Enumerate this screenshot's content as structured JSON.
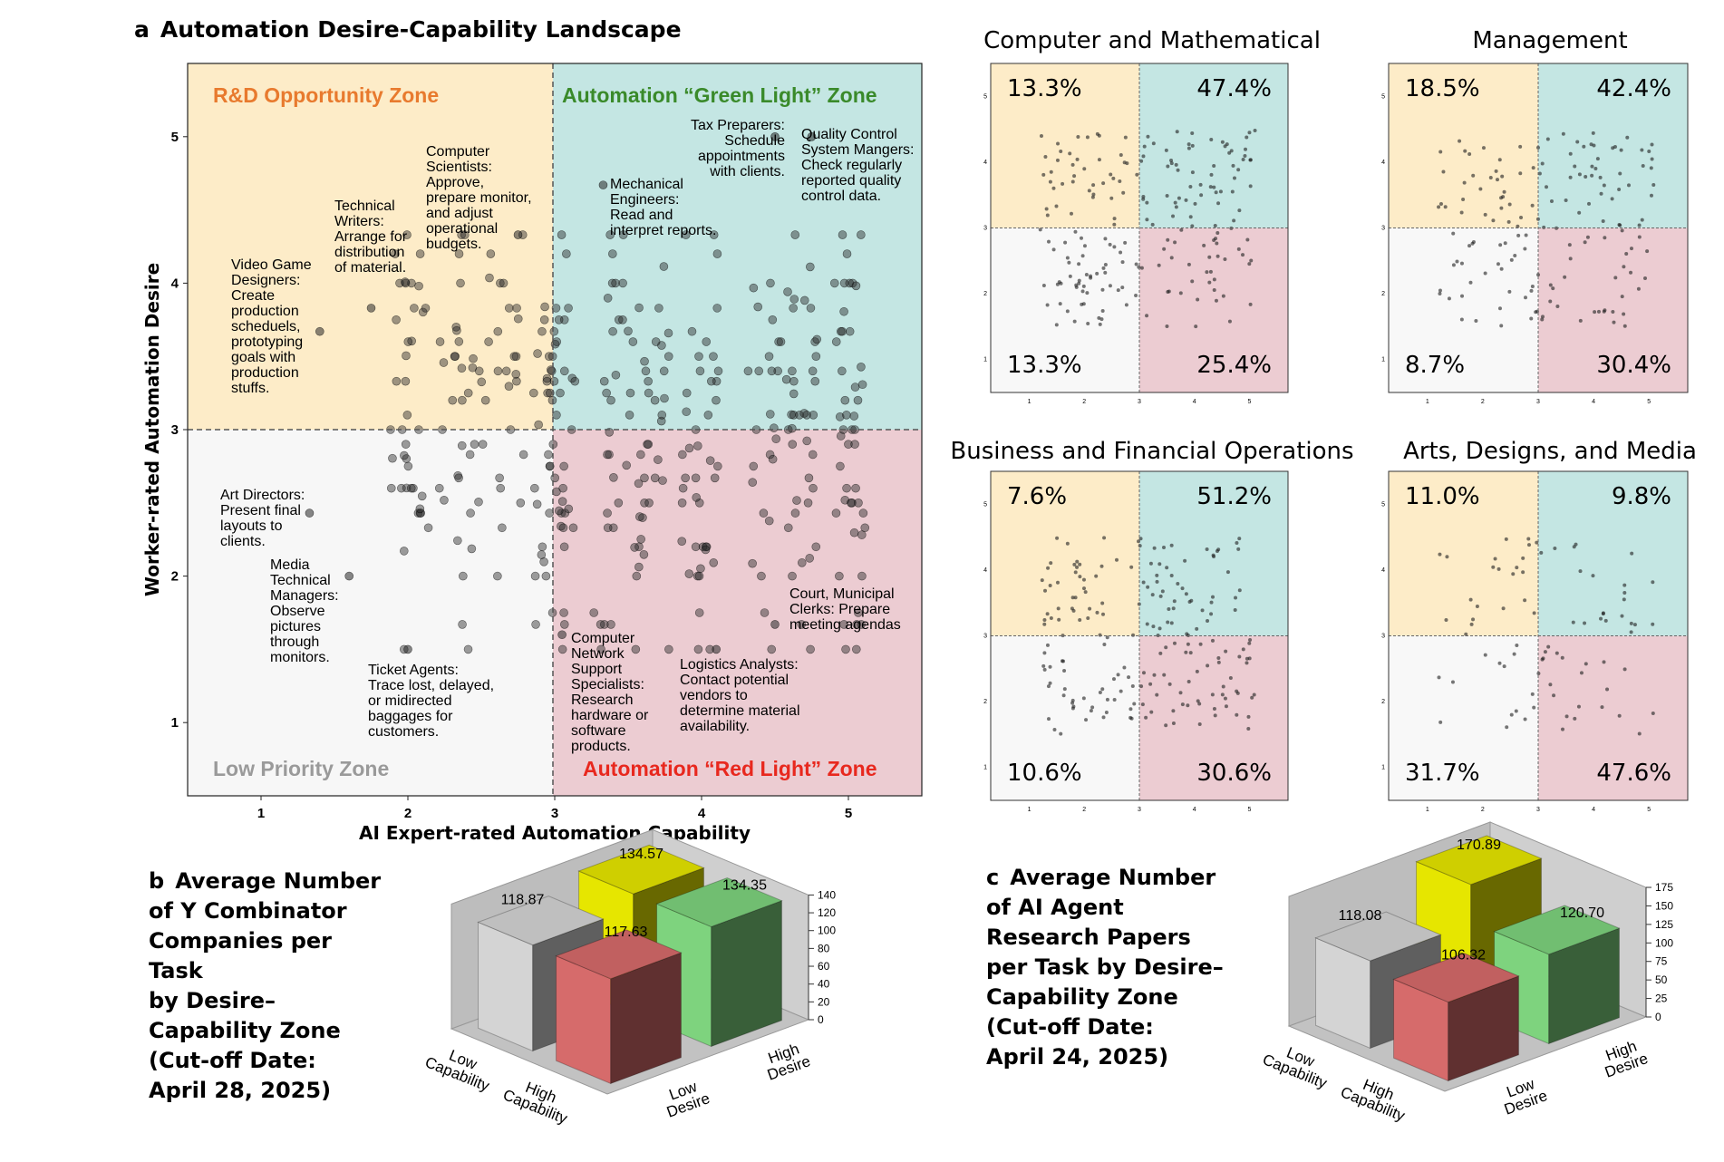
{
  "panel_a": {
    "letter": "a",
    "title": "Automation Desire-Capability Landscape",
    "xlabel": "AI Expert-rated Automation Capability",
    "ylabel": "Worker-rated Automation Desire",
    "xticks": [
      "1",
      "2",
      "3",
      "4",
      "5"
    ],
    "yticks": [
      "1",
      "2",
      "3",
      "4",
      "5"
    ],
    "zones": {
      "rd": "R&D Opportunity Zone",
      "green": "Automation “Green Light” Zone",
      "low": "Low Priority Zone",
      "red": "Automation “Red Light” Zone"
    },
    "annotations": [
      {
        "text": [
          "Video Game",
          "Designers:",
          "Create",
          "production",
          "scheduels,",
          "prototyping",
          "goals with",
          "production",
          "stuffs."
        ]
      },
      {
        "text": [
          "Technical",
          "Writers:",
          "Arrange for",
          "distribution",
          "of material."
        ]
      },
      {
        "text": [
          "Computer",
          "Scientists:",
          "Approve,",
          "prepare monitor,",
          "and adjust",
          "operational",
          "budgets."
        ]
      },
      {
        "text": [
          "Mechanical",
          "Engineers:",
          "Read and",
          "interpret reports."
        ]
      },
      {
        "text": [
          "Tax Preparers:",
          "Schedule",
          "appointments",
          "with clients."
        ]
      },
      {
        "text": [
          "Quality Control",
          "System Mangers:",
          "Check regularly",
          "reported quality",
          "control data."
        ]
      },
      {
        "text": [
          "Art Directors:",
          "Present final",
          "layouts to",
          "clients."
        ]
      },
      {
        "text": [
          "Media",
          "Technical",
          "Managers:",
          "Observe",
          "pictures",
          "through",
          "monitors."
        ]
      },
      {
        "text": [
          "Ticket Agents:",
          "Trace lost, delayed,",
          "or midirected",
          "baggages for",
          "customers."
        ]
      },
      {
        "text": [
          "Computer",
          "Network",
          "Support",
          "Specialists:",
          "Research",
          "hardware or",
          "software",
          "products."
        ]
      },
      {
        "text": [
          "Logistics Analysts:",
          "Contact potential",
          "vendors to",
          "determine material",
          "availability."
        ]
      },
      {
        "text": [
          "Court, Municipal",
          "Clerks: Prepare",
          "meeting agendas"
        ]
      }
    ]
  },
  "small_multiples": [
    {
      "title": "Computer and Mathematical",
      "tl": "13.3%",
      "tr": "47.4%",
      "bl": "13.3%",
      "br": "25.4%"
    },
    {
      "title": "Management",
      "tl": "18.5%",
      "tr": "42.4%",
      "bl": "8.7%",
      "br": "30.4%"
    },
    {
      "title": "Business and Financial Operations",
      "tl": "7.6%",
      "tr": "51.2%",
      "bl": "10.6%",
      "br": "30.6%"
    },
    {
      "title": "Arts, Designs, and Media",
      "tl": "11.0%",
      "tr": "9.8%",
      "bl": "31.7%",
      "br": "47.6%"
    }
  ],
  "small_ticks": [
    "1",
    "2",
    "3",
    "4",
    "5"
  ],
  "panel_b": {
    "letter": "b",
    "title_lines": [
      "Average Number",
      "of Y Combinator",
      "Companies per Task",
      "by Desire–",
      "Capability Zone",
      "(Cut-off Date:",
      "April 28, 2025)"
    ],
    "values": {
      "low_cap_low_des": "118.87",
      "low_cap_high_des": "134.57",
      "high_cap_high_des": "134.35",
      "high_cap_low_des": "117.63"
    },
    "zticks": [
      "0",
      "20",
      "40",
      "60",
      "80",
      "100",
      "120",
      "140"
    ],
    "cap_low": [
      "Low",
      "Capability"
    ],
    "cap_high": [
      "High",
      "Capability"
    ],
    "des_low": [
      "Low",
      "Desire"
    ],
    "des_high": [
      "High",
      "Desire"
    ]
  },
  "panel_c": {
    "letter": "c",
    "title_lines": [
      "Average Number",
      "of AI Agent",
      "Research Papers",
      "per Task by Desire–",
      "Capability Zone",
      "(Cut-off Date:",
      "April 24, 2025)"
    ],
    "values": {
      "low_cap_low_des": "118.08",
      "low_cap_high_des": "170.89",
      "high_cap_high_des": "120.70",
      "high_cap_low_des": "106.32"
    },
    "zticks": [
      "0",
      "25",
      "50",
      "75",
      "100",
      "125",
      "150",
      "175"
    ],
    "cap_low": [
      "Low",
      "Capability"
    ],
    "cap_high": [
      "High",
      "Capability"
    ],
    "des_low": [
      "Low",
      "Desire"
    ],
    "des_high": [
      "High",
      "Desire"
    ]
  },
  "colors": {
    "rd_zone": "#fdecc8",
    "green_zone": "#c4e6e3",
    "low_zone": "#f7f7f7",
    "red_zone": "#ecccd2",
    "rd_text": "#e87a2e",
    "green_text": "#3a8a2a",
    "low_text": "#9a9a9a",
    "red_text": "#e8281e",
    "bar_gray": "#d4d4d4",
    "bar_yellow": "#e6e600",
    "bar_green": "#7ed37e",
    "bar_red": "#d66b6b"
  },
  "chart_data": [
    {
      "type": "scatter",
      "title": "Automation Desire-Capability Landscape",
      "xlabel": "AI Expert-rated Automation Capability",
      "ylabel": "Worker-rated Automation Desire",
      "xlim": [
        0.5,
        5.5
      ],
      "ylim": [
        0.5,
        5.5
      ],
      "thresholds": {
        "x": 3,
        "y": 3
      },
      "highlighted_points": [
        {
          "label": "Video Game Designers",
          "x": 1.4,
          "y": 3.67
        },
        {
          "label": "Technical Writers",
          "x": 1.75,
          "y": 3.83
        },
        {
          "label": "Computer Scientists",
          "x": 2.75,
          "y": 4.33
        },
        {
          "label": "Mechanical Engineers",
          "x": 3.33,
          "y": 4.67
        },
        {
          "label": "Tax Preparers",
          "x": 4.5,
          "y": 5.0
        },
        {
          "label": "Quality Control System Managers",
          "x": 4.75,
          "y": 5.0
        },
        {
          "label": "Art Directors",
          "x": 1.33,
          "y": 2.43
        },
        {
          "label": "Media Technical Managers",
          "x": 1.6,
          "y": 2.0
        },
        {
          "label": "Ticket Agents",
          "x": 2.0,
          "y": 1.5
        },
        {
          "label": "Computer Network Support Specialists",
          "x": 3.05,
          "y": 1.6
        },
        {
          "label": "Logistics Analysts",
          "x": 4.1,
          "y": 1.5
        },
        {
          "label": "Court, Municipal Clerks",
          "x": 4.5,
          "y": 1.67
        }
      ]
    },
    {
      "type": "scatter",
      "title": "Computer and Mathematical",
      "quadrant_shares": {
        "low_cap_high_des": 13.3,
        "high_cap_high_des": 47.4,
        "low_cap_low_des": 13.3,
        "high_cap_low_des": 25.4
      }
    },
    {
      "type": "scatter",
      "title": "Management",
      "quadrant_shares": {
        "low_cap_high_des": 18.5,
        "high_cap_high_des": 42.4,
        "low_cap_low_des": 8.7,
        "high_cap_low_des": 30.4
      }
    },
    {
      "type": "scatter",
      "title": "Business and Financial Operations",
      "quadrant_shares": {
        "low_cap_high_des": 7.6,
        "high_cap_high_des": 51.2,
        "low_cap_low_des": 10.6,
        "high_cap_low_des": 30.6
      }
    },
    {
      "type": "scatter",
      "title": "Arts, Designs, and Media",
      "quadrant_shares": {
        "low_cap_high_des": 11.0,
        "high_cap_high_des": 9.8,
        "low_cap_low_des": 31.7,
        "high_cap_low_des": 47.6
      }
    },
    {
      "type": "bar",
      "title": "Average Number of Y Combinator Companies per Task by Desire–Capability Zone (Cut-off Date: April 28, 2025)",
      "series": [
        {
          "capability": "Low",
          "desire": "Low",
          "value": 118.87
        },
        {
          "capability": "Low",
          "desire": "High",
          "value": 134.57
        },
        {
          "capability": "High",
          "desire": "High",
          "value": 134.35
        },
        {
          "capability": "High",
          "desire": "Low",
          "value": 117.63
        }
      ],
      "zlim": [
        0,
        140
      ]
    },
    {
      "type": "bar",
      "title": "Average Number of AI Agent Research Papers per Task by Desire–Capability Zone (Cut-off Date: April 24, 2025)",
      "series": [
        {
          "capability": "Low",
          "desire": "Low",
          "value": 118.08
        },
        {
          "capability": "Low",
          "desire": "High",
          "value": 170.89
        },
        {
          "capability": "High",
          "desire": "High",
          "value": 120.7
        },
        {
          "capability": "High",
          "desire": "Low",
          "value": 106.32
        }
      ],
      "zlim": [
        0,
        175
      ]
    }
  ]
}
